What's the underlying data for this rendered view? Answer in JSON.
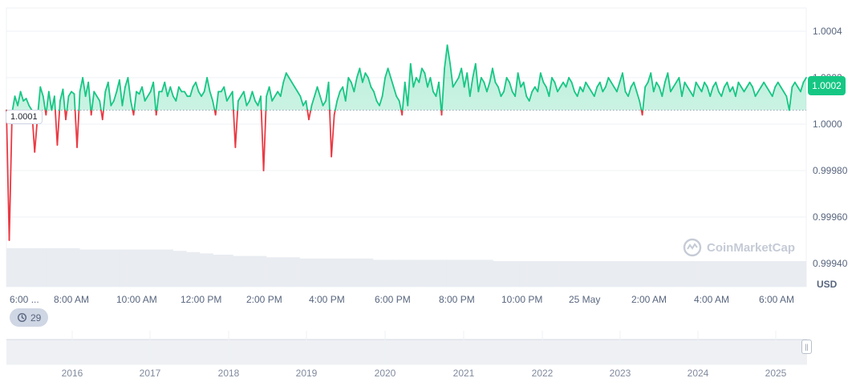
{
  "chart_data": {
    "type": "line",
    "title": "",
    "xlabel": "",
    "ylabel": "USD",
    "ylim": [
      0.9993,
      1.0005
    ],
    "y_ticks": [
      "1.0004",
      "1.0002",
      "1.0000",
      "0.99980",
      "0.99960",
      "0.99940"
    ],
    "y_tick_values": [
      1.0004,
      1.0002,
      1.0,
      0.9998,
      0.9996,
      0.9994
    ],
    "x_ticks": [
      "6:00 ...",
      "8:00 AM",
      "10:00 AM",
      "12:00 PM",
      "2:00 PM",
      "4:00 PM",
      "6:00 PM",
      "8:00 PM",
      "10:00 PM",
      "25 May",
      "2:00 AM",
      "4:00 AM",
      "6:00 AM"
    ],
    "reference_price": 1.00006,
    "reference_label": "1.0001",
    "current_price": 1.0002,
    "current_label": "1.0002",
    "series": [
      {
        "name": "Price",
        "color_up": "#16c784",
        "color_down": "#ea3943",
        "values": [
          1.00006,
          0.9995,
          1.00005,
          1.00012,
          1.00008,
          1.00014,
          1.0001,
          1.00011,
          1.00008,
          1.00006,
          0.99988,
          1.00003,
          1.00016,
          1.00012,
          1.00004,
          1.00014,
          1.00006,
          1.00012,
          0.99991,
          1.0001,
          1.00015,
          1.00002,
          1.00012,
          1.00014,
          1.00013,
          0.9999,
          1.00014,
          1.0002,
          1.00012,
          1.00018,
          1.00004,
          1.00014,
          1.00012,
          1.0001,
          1.00002,
          1.00014,
          1.00018,
          1.00008,
          1.0001,
          1.00014,
          1.00019,
          1.00008,
          1.00016,
          1.0002,
          1.0001,
          1.00004,
          1.00014,
          1.00013,
          1.00016,
          1.0001,
          1.00012,
          1.00014,
          1.00018,
          1.00004,
          1.00014,
          1.00014,
          1.00018,
          1.00012,
          1.00016,
          1.00012,
          1.0001,
          1.00016,
          1.00014,
          1.00014,
          1.00012,
          1.00012,
          1.00016,
          1.00018,
          1.00014,
          1.00012,
          1.00014,
          1.0002,
          1.00014,
          1.0001,
          1.00004,
          1.00014,
          1.00014,
          1.00016,
          1.0001,
          1.00012,
          1.00014,
          0.9999,
          1.0001,
          1.00012,
          1.00014,
          1.00008,
          1.0001,
          1.00014,
          1.0001,
          1.00008,
          1.00012,
          0.9998,
          1.00012,
          1.00016,
          1.0001,
          1.00012,
          1.00014,
          1.00012,
          1.00018,
          1.00022,
          1.0002,
          1.00018,
          1.00016,
          1.00014,
          1.00012,
          1.00008,
          1.0001,
          1.00002,
          1.00008,
          1.00012,
          1.00016,
          1.00012,
          1.00008,
          1.0001,
          1.00018,
          0.99986,
          1.00004,
          1.0001,
          1.00014,
          1.00016,
          1.0001,
          1.0002,
          1.00018,
          1.00014,
          1.0002,
          1.00024,
          1.00018,
          1.00022,
          1.0002,
          1.00016,
          1.00014,
          1.0001,
          1.00008,
          1.00012,
          1.0002,
          1.00024,
          1.0002,
          1.00016,
          1.00012,
          1.0001,
          1.00004,
          1.00018,
          1.00008,
          1.00026,
          1.00016,
          1.0002,
          1.00018,
          1.00024,
          1.00022,
          1.00016,
          1.0002,
          1.00014,
          1.00012,
          1.00018,
          1.00004,
          1.00024,
          1.00034,
          1.00026,
          1.00016,
          1.00018,
          1.0002,
          1.00024,
          1.00016,
          1.00022,
          1.00012,
          1.0002,
          1.00026,
          1.00014,
          1.0002,
          1.00018,
          1.00014,
          1.00018,
          1.00024,
          1.00018,
          1.00016,
          1.00012,
          1.00014,
          1.0002,
          1.00018,
          1.00014,
          1.00012,
          1.00022,
          1.00016,
          1.00018,
          1.00012,
          1.0001,
          1.00014,
          1.00016,
          1.00014,
          1.00022,
          1.00018,
          1.00016,
          1.00012,
          1.0002,
          1.00018,
          1.00014,
          1.00016,
          1.00018,
          1.00016,
          1.0002,
          1.00018,
          1.00014,
          1.00012,
          1.00016,
          1.00014,
          1.00018,
          1.00016,
          1.00014,
          1.00012,
          1.00016,
          1.00018,
          1.00014,
          1.00016,
          1.0002,
          1.00018,
          1.00016,
          1.00014,
          1.00018,
          1.00022,
          1.00014,
          1.00012,
          1.00016,
          1.00018,
          1.00014,
          1.0001,
          1.00004,
          1.00016,
          1.00018,
          1.00022,
          1.00014,
          1.00018,
          1.00016,
          1.00012,
          1.00018,
          1.00022,
          1.00014,
          1.00016,
          1.00018,
          1.0002,
          1.00012,
          1.00018,
          1.00016,
          1.00014,
          1.00012,
          1.00018,
          1.00016,
          1.00014,
          1.00018,
          1.00016,
          1.00012,
          1.00016,
          1.00018,
          1.00014,
          1.00012,
          1.00016,
          1.00018,
          1.00014,
          1.00016,
          1.00012,
          1.00018,
          1.00016,
          1.00014,
          1.00016,
          1.00018,
          1.00016,
          1.00012,
          1.00014,
          1.00016,
          1.00018,
          1.00016,
          1.00014,
          1.00012,
          1.00016,
          1.00018,
          1.00016,
          1.00014,
          1.00012,
          1.00006,
          1.00016,
          1.00018,
          1.00016,
          1.00014,
          1.00018,
          1.0002
        ]
      }
    ],
    "volume_values": [
      0.3,
      0.3,
      0.3,
      0.3,
      0.3,
      0.3,
      0.3,
      0.3,
      0.3,
      0.3,
      0.3,
      0.29,
      0.29,
      0.29,
      0.29,
      0.29,
      0.29,
      0.29,
      0.29,
      0.29,
      0.29,
      0.29,
      0.29,
      0.29,
      0.29,
      0.28,
      0.28,
      0.27,
      0.27,
      0.26,
      0.26,
      0.25,
      0.25,
      0.25,
      0.24,
      0.24,
      0.24,
      0.24,
      0.24,
      0.23,
      0.23,
      0.23,
      0.23,
      0.23,
      0.22,
      0.22,
      0.22,
      0.22,
      0.22,
      0.22,
      0.22,
      0.22,
      0.22,
      0.22,
      0.22,
      0.21,
      0.21,
      0.21,
      0.21,
      0.21,
      0.21,
      0.21,
      0.21,
      0.21,
      0.21,
      0.21,
      0.21,
      0.21,
      0.21,
      0.21,
      0.21,
      0.21,
      0.21,
      0.2,
      0.2,
      0.2,
      0.2,
      0.2,
      0.2,
      0.2,
      0.2,
      0.2,
      0.2,
      0.2,
      0.2,
      0.2,
      0.2,
      0.2,
      0.2,
      0.2,
      0.2,
      0.2,
      0.2,
      0.2,
      0.2,
      0.2,
      0.2,
      0.2,
      0.2,
      0.2,
      0.2,
      0.2,
      0.2,
      0.2,
      0.2,
      0.2,
      0.2,
      0.2,
      0.2,
      0.2,
      0.2,
      0.2,
      0.2,
      0.2,
      0.2,
      0.2,
      0.2,
      0.2,
      0.2,
      0.2
    ],
    "navigator_years": [
      "2016",
      "2017",
      "2018",
      "2019",
      "2020",
      "2021",
      "2022",
      "2023",
      "2024",
      "2025"
    ]
  },
  "ui": {
    "unit_label": "USD",
    "badge_count": "29",
    "watermark_text": "CoinMarketCap",
    "handle_glyph": "||"
  }
}
